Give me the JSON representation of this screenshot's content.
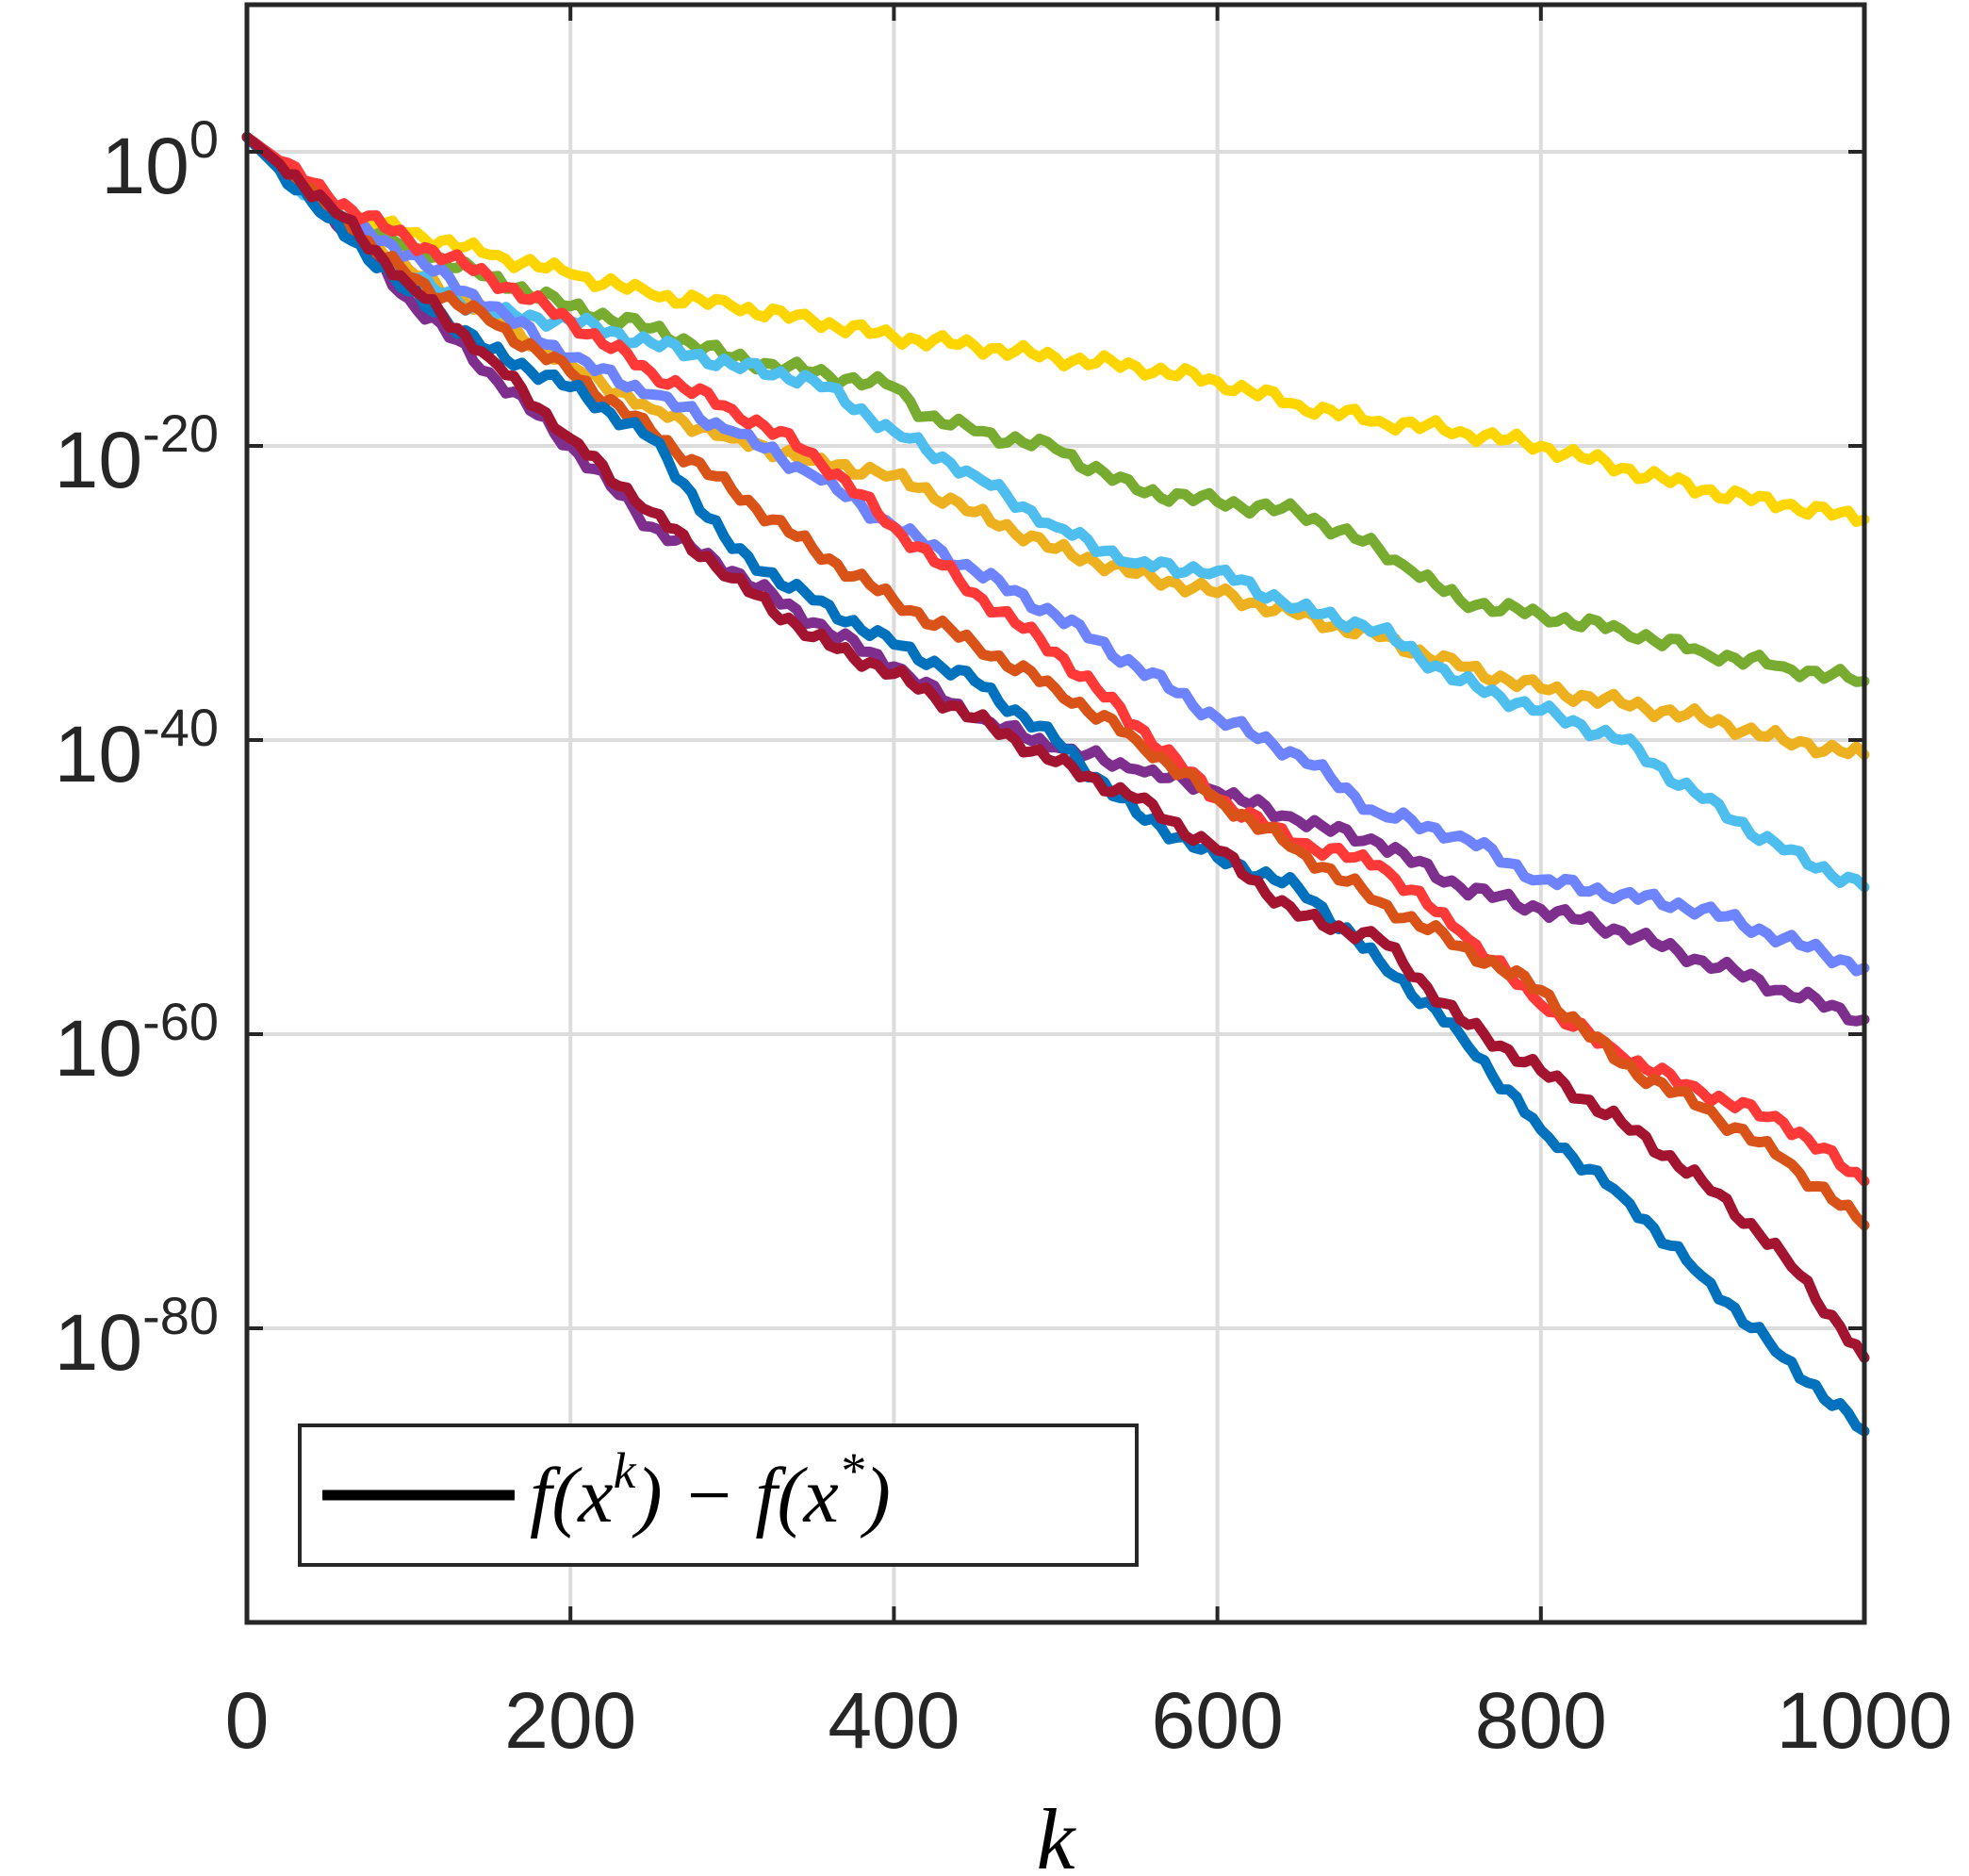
{
  "chart_data": {
    "type": "line",
    "title": "",
    "xlabel": "k",
    "ylabel": "",
    "xlim": [
      0,
      1000
    ],
    "ylim": [
      -100,
      10
    ],
    "y_scale": "log10",
    "grid": true,
    "legend_position": "bottom-left",
    "legend": [
      {
        "label": "f(x^k) − f(x*)",
        "color": "#000000"
      }
    ],
    "x_ticks": [
      {
        "value": 0,
        "label": "0"
      },
      {
        "value": 200,
        "label": "200"
      },
      {
        "value": 400,
        "label": "400"
      },
      {
        "value": 600,
        "label": "600"
      },
      {
        "value": 800,
        "label": "800"
      },
      {
        "value": 1000,
        "label": "1000"
      }
    ],
    "y_ticks": [
      {
        "value": 0,
        "base": "10",
        "exp": "0"
      },
      {
        "value": -20,
        "base": "10",
        "exp": "-20"
      },
      {
        "value": -40,
        "base": "10",
        "exp": "-40"
      },
      {
        "value": -60,
        "base": "10",
        "exp": "-60"
      },
      {
        "value": -80,
        "base": "10",
        "exp": "-80"
      }
    ],
    "series": [
      {
        "name": "yellow",
        "color": "#FDD600",
        "x": [
          0,
          50,
          100,
          150,
          200,
          250,
          300,
          350,
          400,
          450,
          500,
          550,
          600,
          650,
          700,
          750,
          800,
          850,
          900,
          950,
          1000
        ],
        "y": [
          1,
          -4,
          -5.5,
          -7,
          -8.3,
          -9.7,
          -10.5,
          -11.5,
          -12.6,
          -13.2,
          -14,
          -14.6,
          -15.6,
          -17.2,
          -18.3,
          -19,
          -20,
          -21.5,
          -23,
          -24,
          -25
        ]
      },
      {
        "name": "green",
        "color": "#77AC30",
        "x": [
          0,
          50,
          100,
          150,
          200,
          250,
          300,
          350,
          400,
          420,
          450,
          500,
          550,
          600,
          650,
          700,
          720,
          750,
          800,
          850,
          900,
          950,
          1000
        ],
        "y": [
          1,
          -4,
          -6.5,
          -8.5,
          -10.5,
          -12,
          -14,
          -15,
          -16,
          -18,
          -19,
          -20.2,
          -23,
          -23.8,
          -24.5,
          -27,
          -28.5,
          -30.5,
          -31.5,
          -32.5,
          -34,
          -35,
          -36
        ]
      },
      {
        "name": "orange",
        "color": "#EDB120",
        "x": [
          0,
          50,
          100,
          150,
          200,
          250,
          300,
          350,
          400,
          450,
          500,
          550,
          600,
          650,
          700,
          750,
          800,
          850,
          900,
          950,
          1000
        ],
        "y": [
          1,
          -4,
          -8,
          -11,
          -14.5,
          -17.5,
          -19.5,
          -21,
          -22,
          -24.5,
          -27,
          -28.7,
          -30,
          -31.5,
          -33,
          -35,
          -36.5,
          -37.5,
          -38.5,
          -40,
          -41
        ]
      },
      {
        "name": "light-blue",
        "color": "#4DBEEE",
        "x": [
          0,
          50,
          100,
          150,
          200,
          250,
          300,
          350,
          400,
          450,
          500,
          550,
          600,
          650,
          700,
          750,
          800,
          850,
          900,
          950,
          1000
        ],
        "y": [
          1,
          -4,
          -8.5,
          -11,
          -11.5,
          -13,
          -14.5,
          -15.5,
          -19,
          -22,
          -25.5,
          -28,
          -28.5,
          -31,
          -32.5,
          -36,
          -38,
          -40,
          -44,
          -47.5,
          -50
        ]
      },
      {
        "name": "periwinkle",
        "color": "#6E84FF",
        "x": [
          0,
          50,
          100,
          150,
          200,
          250,
          300,
          350,
          400,
          450,
          500,
          550,
          600,
          650,
          700,
          750,
          800,
          850,
          900,
          950,
          1000
        ],
        "y": [
          1,
          -4,
          -7,
          -10.5,
          -14,
          -16.5,
          -19,
          -22,
          -25.5,
          -28.5,
          -31.5,
          -35,
          -38.5,
          -41,
          -45,
          -46.5,
          -49.5,
          -50.5,
          -51.5,
          -53.5,
          -55.5
        ]
      },
      {
        "name": "purple",
        "color": "#7E2F8E",
        "x": [
          0,
          50,
          100,
          150,
          200,
          250,
          300,
          350,
          400,
          450,
          500,
          550,
          600,
          650,
          700,
          750,
          800,
          850,
          900,
          950,
          1000
        ],
        "y": [
          1,
          -4,
          -10,
          -15,
          -20,
          -25.5,
          -28.5,
          -32,
          -35,
          -38.5,
          -40.5,
          -42,
          -43.5,
          -45.5,
          -47,
          -50,
          -51.5,
          -53,
          -55,
          -57,
          -59
        ]
      },
      {
        "name": "red",
        "color": "#FF3838",
        "x": [
          0,
          50,
          100,
          150,
          200,
          250,
          300,
          350,
          400,
          450,
          500,
          550,
          600,
          650,
          700,
          750,
          800,
          850,
          900,
          950,
          1000
        ],
        "y": [
          1,
          -3,
          -6,
          -8.5,
          -11.5,
          -15,
          -17.5,
          -20.5,
          -25.5,
          -30,
          -34,
          -39,
          -44,
          -47,
          -48.5,
          -53,
          -58,
          -61.5,
          -64,
          -66,
          -70
        ]
      },
      {
        "name": "dark-orange",
        "color": "#D95319",
        "x": [
          0,
          50,
          100,
          150,
          200,
          250,
          300,
          350,
          400,
          450,
          500,
          550,
          600,
          650,
          700,
          750,
          800,
          850,
          900,
          950,
          1000
        ],
        "y": [
          1,
          -4,
          -8.5,
          -11.5,
          -15,
          -19,
          -23,
          -27,
          -30.5,
          -33.5,
          -36.5,
          -40,
          -44,
          -47.5,
          -51,
          -54,
          -57,
          -62,
          -65,
          -68.5,
          -73
        ]
      },
      {
        "name": "blue",
        "color": "#0072BD",
        "x": [
          0,
          50,
          100,
          150,
          200,
          250,
          300,
          350,
          400,
          450,
          500,
          550,
          600,
          650,
          700,
          750,
          800,
          850,
          900,
          950,
          1000
        ],
        "y": [
          1,
          -4.5,
          -9.5,
          -13.5,
          -16,
          -19.5,
          -27,
          -30.5,
          -33.5,
          -36,
          -40,
          -45,
          -48,
          -50,
          -55,
          -60,
          -66.5,
          -71,
          -76.5,
          -82,
          -87
        ]
      },
      {
        "name": "dark-red",
        "color": "#A2142F",
        "x": [
          0,
          50,
          100,
          150,
          200,
          250,
          300,
          350,
          400,
          450,
          500,
          550,
          600,
          650,
          700,
          750,
          800,
          850,
          900,
          950,
          1000
        ],
        "y": [
          1,
          -3.5,
          -9,
          -14,
          -19.5,
          -24.5,
          -29,
          -33,
          -35.5,
          -38.5,
          -41.5,
          -44,
          -47.5,
          -52,
          -53.5,
          -59,
          -62.5,
          -66,
          -70,
          -75,
          -82
        ]
      }
    ]
  }
}
